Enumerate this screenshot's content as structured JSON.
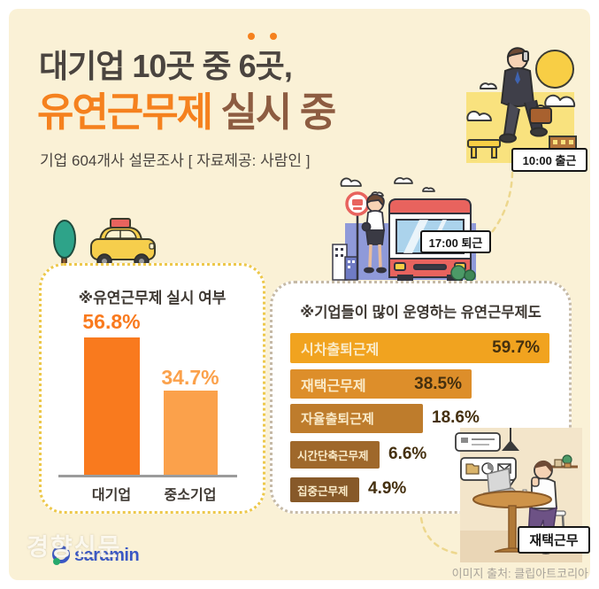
{
  "header": {
    "title_line1_pre": "대기업 10곳 중 ",
    "title_line1_accent": "6곳",
    "title_line1_post": ",",
    "title_line2_highlight": "유연근무제",
    "title_line2_rest": " 실시 중",
    "subtitle": "기업 604개사 설문조사 [ 자료제공: 사람인 ]"
  },
  "badges": {
    "morning": "10:00 출근",
    "evening": "17:00 퇴근",
    "remote": "재택근무"
  },
  "left_panel": {
    "title": "※유연근무제 실시 여부",
    "bars": [
      {
        "label": "대기업",
        "value": "56.8%"
      },
      {
        "label": "중소기업",
        "value": "34.7%"
      }
    ]
  },
  "right_panel": {
    "title": "※기업들이 많이 운영하는 유연근무제도",
    "bars": [
      {
        "label": "시차출퇴근제",
        "value": "59.7%"
      },
      {
        "label": "재택근무제",
        "value": "38.5%"
      },
      {
        "label": "자율출퇴근제",
        "value": "18.6%"
      },
      {
        "label": "시간단축근무제",
        "value": "6.6%"
      },
      {
        "label": "집중근무제",
        "value": "4.9%"
      }
    ]
  },
  "footer": {
    "watermark": "경향신문",
    "logo_text": "saramin",
    "credit": "이미지 출처: 클립아트코리아"
  },
  "chart_data": [
    {
      "type": "bar",
      "orientation": "vertical",
      "title": "※유연근무제 실시 여부",
      "categories": [
        "대기업",
        "중소기업"
      ],
      "values": [
        56.8,
        34.7
      ],
      "unit": "%",
      "ylim": [
        0,
        60
      ],
      "bar_colors": [
        "#F97A1E",
        "#FBA14B"
      ],
      "grid": false,
      "legend": "none"
    },
    {
      "type": "bar",
      "orientation": "horizontal",
      "title": "※기업들이 많이 운영하는 유연근무제도",
      "categories": [
        "시차출퇴근제",
        "재택근무제",
        "자율출퇴근제",
        "시간단축근무제",
        "집중근무제"
      ],
      "values": [
        59.7,
        38.5,
        18.6,
        6.6,
        4.9
      ],
      "unit": "%",
      "xlim": [
        0,
        62
      ],
      "bar_colors": [
        "#F1A31F",
        "#DD8E2A",
        "#BE7C2C",
        "#9F682B",
        "#875929"
      ],
      "grid": false,
      "legend": "none"
    }
  ]
}
